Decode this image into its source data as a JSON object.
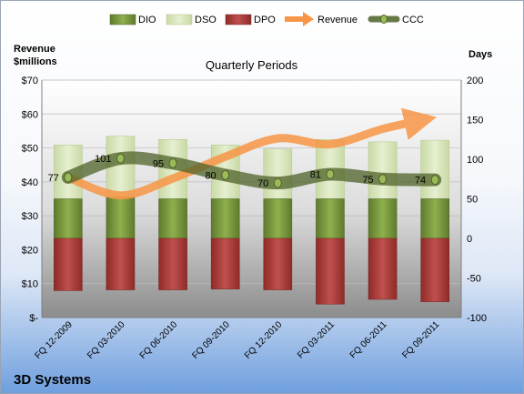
{
  "chart_data": {
    "type": "bar",
    "title": "Quarterly Periods",
    "company": "3D Systems",
    "left_axis_label_line1": "Revenue",
    "left_axis_label_line2": "$millions",
    "right_axis_label": "Days",
    "categories": [
      "FQ 12-2009",
      "FQ 03-2010",
      "FQ 06-2010",
      "FQ 09-2010",
      "FQ 12-2010",
      "FQ 03-2011",
      "FQ 06-2011",
      "FQ 09-2011"
    ],
    "left_axis": {
      "min": 0,
      "max": 70,
      "step": 10,
      "ticks": [
        "$-",
        "$10",
        "$20",
        "$30",
        "$40",
        "$50",
        "$60",
        "$70"
      ]
    },
    "right_axis": {
      "min": -100,
      "max": 200,
      "step": 50,
      "ticks": [
        "-100",
        "-50",
        "0",
        "50",
        "100",
        "150",
        "200"
      ]
    },
    "series": [
      {
        "name": "DIO",
        "kind": "bar-positive",
        "color": "#77933c",
        "values": [
          50,
          52,
          50,
          50,
          50,
          50,
          50,
          50
        ]
      },
      {
        "name": "DSO",
        "kind": "bar-stacked",
        "color": "#d7e4bd",
        "values": [
          68,
          77,
          75,
          68,
          63,
          75,
          72,
          74
        ]
      },
      {
        "name": "DPO",
        "kind": "bar-negative",
        "color": "#c0504d",
        "values": [
          -66,
          -65,
          -65,
          -64,
          -65,
          -83,
          -77,
          -80
        ]
      },
      {
        "name": "Revenue",
        "kind": "line-axis-left",
        "color": "#f79646",
        "values": [
          41.3,
          36.0,
          41.0,
          47.4,
          52.8,
          51.1,
          55.6,
          59.0
        ]
      },
      {
        "name": "CCC",
        "kind": "line-axis-right",
        "color": "#4f6228",
        "values": [
          77,
          101,
          95,
          80,
          70,
          81,
          75,
          74
        ]
      }
    ],
    "ccc_labels": [
      "77",
      "101",
      "95",
      "80",
      "70",
      "81",
      "75",
      "74"
    ],
    "legend_position": "top"
  }
}
